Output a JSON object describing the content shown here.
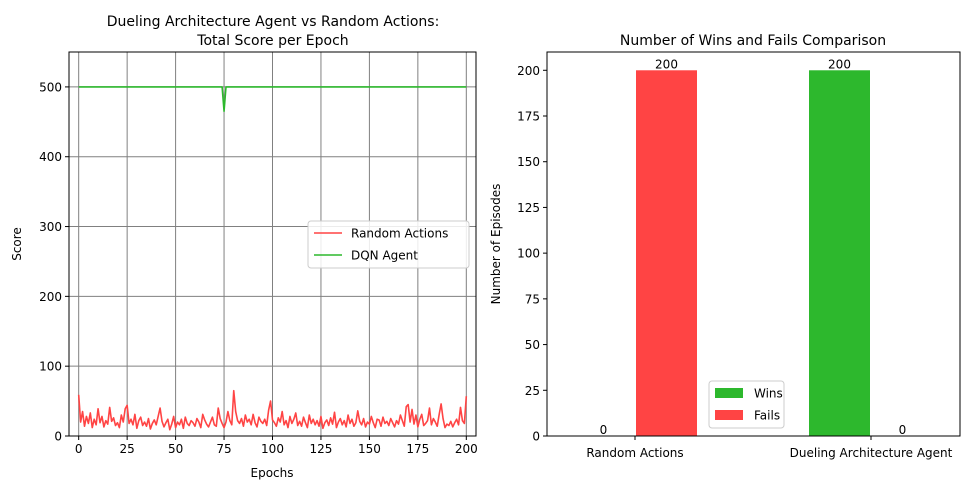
{
  "chart_data": [
    {
      "type": "line",
      "title_lines": [
        "Dueling Architecture Agent vs Random Actions:",
        "Total Score per Epoch"
      ],
      "xlabel": "Epochs",
      "ylabel": "Score",
      "xlim": [
        -5,
        205
      ],
      "ylim": [
        0,
        550
      ],
      "xticks": [
        0,
        25,
        50,
        75,
        100,
        125,
        150,
        175,
        200
      ],
      "yticks": [
        0,
        100,
        200,
        300,
        400,
        500
      ],
      "grid": true,
      "legend_position": "center-right",
      "series": [
        {
          "name": "Random Actions",
          "color": "#ff4444",
          "values": [
            59,
            20,
            35,
            14,
            28,
            18,
            33,
            12,
            24,
            16,
            39,
            19,
            28,
            13,
            22,
            17,
            41,
            21,
            26,
            15,
            19,
            12,
            30,
            20,
            39,
            44,
            18,
            24,
            16,
            31,
            11,
            22,
            27,
            15,
            20,
            14,
            25,
            10,
            18,
            23,
            16,
            28,
            40,
            21,
            13,
            19,
            24,
            9,
            17,
            28,
            12,
            20,
            16,
            24,
            11,
            27,
            18,
            15,
            22,
            19,
            14,
            25,
            20,
            12,
            31,
            23,
            17,
            13,
            20,
            27,
            16,
            14,
            40,
            25,
            18,
            12,
            20,
            35,
            22,
            16,
            65,
            35,
            22,
            18,
            25,
            14,
            30,
            20,
            24,
            16,
            31,
            19,
            13,
            27,
            21,
            18,
            24,
            15,
            37,
            50,
            23,
            19,
            14,
            26,
            20,
            35,
            16,
            22,
            12,
            28,
            18,
            24,
            33,
            15,
            21,
            14,
            27,
            19,
            12,
            30,
            18,
            24,
            16,
            22,
            14,
            28,
            11,
            19,
            23,
            15,
            26,
            17,
            34,
            12,
            20,
            25,
            16,
            22,
            13,
            30,
            18,
            24,
            14,
            19,
            36,
            21,
            16,
            25,
            13,
            20,
            17,
            28,
            19,
            12,
            24,
            23,
            14,
            27,
            18,
            21,
            15,
            25,
            19,
            13,
            22,
            17,
            30,
            22,
            14,
            42,
            45,
            20,
            38,
            17,
            30,
            13,
            24,
            31,
            15,
            18,
            22,
            40,
            16,
            25,
            20,
            14,
            31,
            46,
            25,
            12,
            17,
            15,
            21,
            13,
            19,
            24,
            16,
            41,
            22,
            18,
            57
          ]
        },
        {
          "name": "DQN Agent",
          "color": "#2db82d",
          "values": [
            500,
            500,
            500,
            500,
            500,
            500,
            500,
            500,
            500,
            500,
            500,
            500,
            500,
            500,
            500,
            500,
            500,
            500,
            500,
            500,
            500,
            500,
            500,
            500,
            500,
            500,
            500,
            500,
            500,
            500,
            500,
            500,
            500,
            500,
            500,
            500,
            500,
            500,
            500,
            500,
            500,
            500,
            500,
            500,
            500,
            500,
            500,
            500,
            500,
            500,
            500,
            500,
            500,
            500,
            500,
            500,
            500,
            500,
            500,
            500,
            500,
            500,
            500,
            500,
            500,
            500,
            500,
            500,
            500,
            500,
            500,
            500,
            500,
            500,
            500,
            465,
            500,
            500,
            500,
            500,
            500,
            500,
            500,
            500,
            500,
            500,
            500,
            500,
            500,
            500,
            500,
            500,
            500,
            500,
            500,
            500,
            500,
            500,
            500,
            500,
            500,
            500,
            500,
            500,
            500,
            500,
            500,
            500,
            500,
            500,
            500,
            500,
            500,
            500,
            500,
            500,
            500,
            500,
            500,
            500,
            500,
            500,
            500,
            500,
            500,
            500,
            500,
            500,
            500,
            500,
            500,
            500,
            500,
            500,
            500,
            500,
            500,
            500,
            500,
            500,
            500,
            500,
            500,
            500,
            500,
            500,
            500,
            500,
            500,
            500,
            500,
            500,
            500,
            500,
            500,
            500,
            500,
            500,
            500,
            500,
            500,
            500,
            500,
            500,
            500,
            500,
            500,
            500,
            500,
            500,
            500,
            500,
            500,
            500,
            500,
            500,
            500,
            500,
            500,
            500,
            500,
            500,
            500,
            500,
            500,
            500,
            500,
            500,
            500,
            500,
            500,
            500,
            500,
            500,
            500,
            500,
            500,
            500,
            500,
            500,
            500
          ]
        }
      ]
    },
    {
      "type": "bar",
      "title": "Number of Wins and Fails Comparison",
      "xlabel": "",
      "ylabel": "Number of Episodes",
      "categories": [
        "Random Actions",
        "Dueling Architecture Agent"
      ],
      "ylim": [
        0,
        210
      ],
      "yticks": [
        0,
        25,
        50,
        75,
        100,
        125,
        150,
        175,
        200
      ],
      "grid": false,
      "legend_position": "lower-center",
      "series": [
        {
          "name": "Wins",
          "color": "#2db82d",
          "values": [
            0,
            200
          ],
          "labels": [
            "0",
            "200"
          ]
        },
        {
          "name": "Fails",
          "color": "#ff4444",
          "values": [
            200,
            0
          ],
          "labels": [
            "200",
            "0"
          ]
        }
      ]
    }
  ]
}
